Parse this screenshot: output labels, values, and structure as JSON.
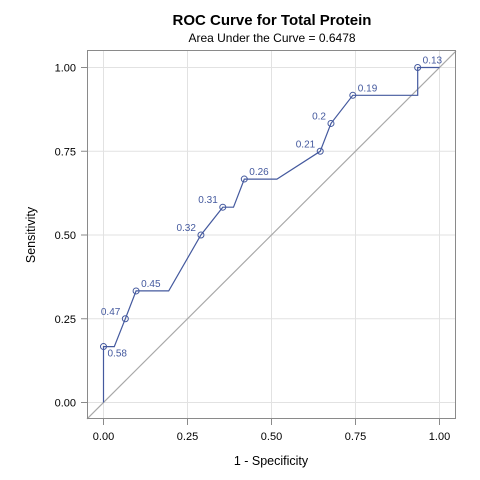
{
  "colors": {
    "curve": "#44599e",
    "diagonal": "#a8a8a8",
    "grid": "#e2e2e2",
    "frame": "#8a8a8a"
  },
  "chart_data": {
    "type": "line",
    "title": "ROC Curve for Total Protein",
    "subtitle": "Area Under the Curve = 0.6478",
    "xlabel": "1 - Specificity",
    "ylabel": "Sensitivity",
    "xlim": [
      0,
      1
    ],
    "ylim": [
      0,
      1
    ],
    "xticks": [
      "0.00",
      "0.25",
      "0.50",
      "0.75",
      "1.00"
    ],
    "yticks": [
      "0.00",
      "0.25",
      "0.50",
      "0.75",
      "1.00"
    ],
    "grid": true,
    "reference_line": "diagonal",
    "curve": {
      "x": [
        0,
        0,
        0.032,
        0.065,
        0.097,
        0.194,
        0.29,
        0.355,
        0.387,
        0.419,
        0.516,
        0.645,
        0.677,
        0.742,
        0.935,
        0.935,
        1.0
      ],
      "y": [
        0,
        0.167,
        0.167,
        0.25,
        0.333,
        0.333,
        0.5,
        0.583,
        0.583,
        0.667,
        0.667,
        0.75,
        0.833,
        0.917,
        0.917,
        1.0,
        1.0
      ]
    },
    "labeled_points": [
      {
        "label": "0.58",
        "x": 0.0,
        "y": 0.167,
        "pos": "below-right"
      },
      {
        "label": "0.47",
        "x": 0.065,
        "y": 0.25,
        "pos": "above-left"
      },
      {
        "label": "0.45",
        "x": 0.097,
        "y": 0.333,
        "pos": "right"
      },
      {
        "label": "0.32",
        "x": 0.29,
        "y": 0.5,
        "pos": "above-left"
      },
      {
        "label": "0.31",
        "x": 0.355,
        "y": 0.583,
        "pos": "above-left"
      },
      {
        "label": "0.26",
        "x": 0.419,
        "y": 0.667,
        "pos": "right"
      },
      {
        "label": "0.21",
        "x": 0.645,
        "y": 0.75,
        "pos": "above-left"
      },
      {
        "label": "0.2",
        "x": 0.677,
        "y": 0.833,
        "pos": "above-left"
      },
      {
        "label": "0.19",
        "x": 0.742,
        "y": 0.917,
        "pos": "right"
      },
      {
        "label": "0.13",
        "x": 0.935,
        "y": 1.0,
        "pos": "right"
      }
    ]
  }
}
